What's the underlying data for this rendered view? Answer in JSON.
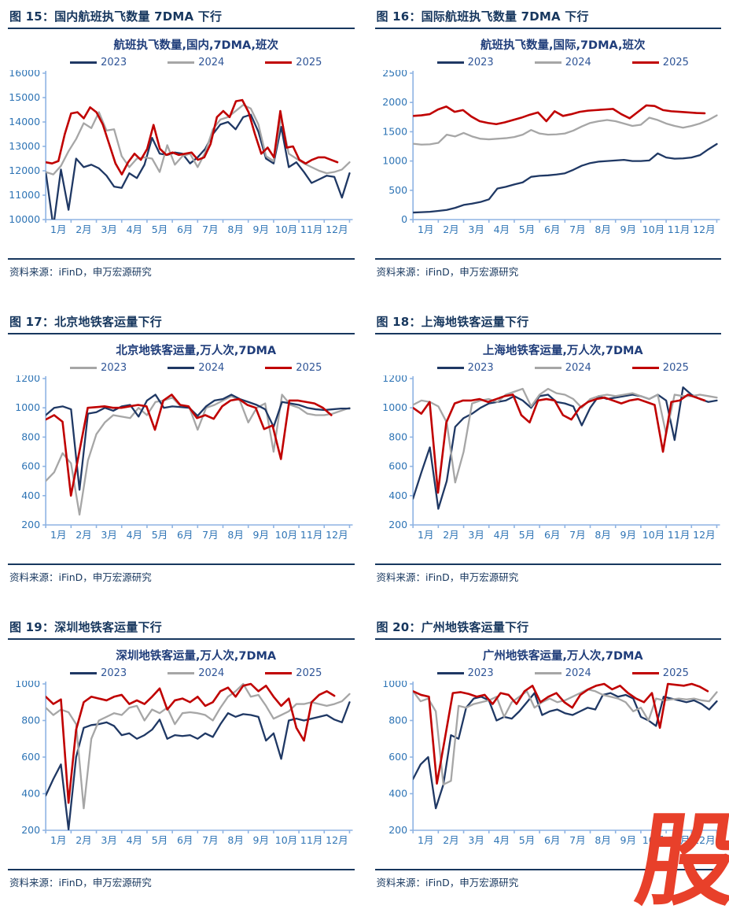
{
  "page": {
    "source_label": "资料来源：iFinD，申万宏源研究",
    "watermark": {
      "text": "股",
      "color": "#E8402A"
    }
  },
  "colors": {
    "navy": "#1F3864",
    "gray": "#A6A6A6",
    "red": "#C00000",
    "header": "#17375E",
    "tick": "#2E74B5",
    "axis": "#8FB4E3",
    "legend_text": "#2F5597"
  },
  "chart_data": [
    {
      "type": "line",
      "figure_number": "15",
      "figure_label": "图 15：国内航班执飞数量 7DMA 下行",
      "title": "航班执飞数量,国内,7DMA,班次",
      "x_labels": [
        "1月",
        "2月",
        "3月",
        "4月",
        "5月",
        "6月",
        "7月",
        "8月",
        "9月",
        "10月",
        "11月",
        "12月"
      ],
      "ylim": [
        10000,
        16000
      ],
      "y_step": 1000,
      "grid": false,
      "legend_position": "top",
      "series": [
        {
          "name": "2023",
          "color": "navy",
          "end": 1.0,
          "values": [
            11950,
            9700,
            12050,
            10400,
            12500,
            12150,
            12250,
            12100,
            11800,
            11350,
            11300,
            11900,
            11700,
            12250,
            13350,
            12700,
            12650,
            12750,
            12700,
            12300,
            12550,
            12900,
            13500,
            13900,
            14000,
            13700,
            14200,
            14300,
            13600,
            12500,
            12300,
            13800,
            12150,
            12350,
            11950,
            11500,
            11650,
            11800,
            11750,
            10900,
            11900
          ]
        },
        {
          "name": "2024",
          "color": "gray",
          "end": 1.0,
          "values": [
            11950,
            11850,
            12200,
            12800,
            13300,
            13950,
            13750,
            14400,
            13650,
            13700,
            12600,
            12150,
            12500,
            12550,
            12500,
            11950,
            13050,
            12250,
            12600,
            12700,
            12150,
            12750,
            13700,
            14100,
            14200,
            14450,
            14700,
            14550,
            13900,
            12600,
            12400,
            14200,
            12700,
            12500,
            12300,
            12150,
            12000,
            11900,
            11950,
            12050,
            12350
          ]
        },
        {
          "name": "2025",
          "color": "red",
          "end": 0.96,
          "values": [
            12350,
            12300,
            12400,
            13500,
            14350,
            14400,
            14150,
            14600,
            14400,
            13900,
            13100,
            12300,
            11850,
            12350,
            12700,
            12450,
            12900,
            13880,
            12900,
            12650,
            12750,
            12650,
            12700,
            12750,
            12450,
            12550,
            13100,
            14200,
            14450,
            14200,
            14850,
            14900,
            14400,
            13500,
            12700,
            12950,
            12550,
            14450,
            12950,
            13000,
            12450,
            12300,
            12450,
            12550,
            12550,
            12450,
            12350
          ]
        }
      ]
    },
    {
      "type": "line",
      "figure_number": "16",
      "figure_label": "图 16：国际航班执飞数量 7DMA 下行",
      "title": "航班执飞数量,国际,7DMA,班次",
      "x_labels": [
        "1月",
        "2月",
        "3月",
        "4月",
        "5月",
        "6月",
        "7月",
        "8月",
        "9月",
        "10月",
        "11月",
        "12月"
      ],
      "ylim": [
        0,
        2500
      ],
      "y_step": 500,
      "grid": false,
      "legend_position": "top",
      "series": [
        {
          "name": "2023",
          "color": "navy",
          "end": 1.0,
          "values": [
            120,
            126,
            133,
            148,
            165,
            200,
            250,
            272,
            300,
            345,
            530,
            560,
            600,
            635,
            730,
            748,
            755,
            770,
            790,
            850,
            920,
            965,
            990,
            1000,
            1010,
            1020,
            1000,
            1000,
            1010,
            1130,
            1060,
            1040,
            1045,
            1060,
            1100,
            1200,
            1290
          ]
        },
        {
          "name": "2024",
          "color": "gray",
          "end": 1.0,
          "values": [
            1295,
            1280,
            1285,
            1310,
            1450,
            1420,
            1480,
            1420,
            1380,
            1370,
            1380,
            1390,
            1410,
            1450,
            1530,
            1470,
            1450,
            1455,
            1470,
            1520,
            1590,
            1650,
            1680,
            1700,
            1680,
            1640,
            1600,
            1620,
            1740,
            1700,
            1640,
            1600,
            1570,
            1600,
            1640,
            1700,
            1780
          ]
        },
        {
          "name": "2025",
          "color": "red",
          "end": 0.96,
          "values": [
            1770,
            1780,
            1800,
            1880,
            1930,
            1840,
            1870,
            1760,
            1680,
            1650,
            1630,
            1660,
            1700,
            1740,
            1790,
            1830,
            1680,
            1850,
            1770,
            1800,
            1840,
            1860,
            1870,
            1880,
            1890,
            1800,
            1730,
            1840,
            1950,
            1940,
            1870,
            1850,
            1840,
            1830,
            1820,
            1815
          ]
        }
      ]
    },
    {
      "type": "line",
      "figure_number": "17",
      "figure_label": "图 17：北京地铁客运量下行",
      "title": "北京地铁客运量,万人次,7DMA",
      "x_labels": [
        "1月",
        "2月",
        "3月",
        "4月",
        "5月",
        "6月",
        "7月",
        "8月",
        "9月",
        "10月",
        "11月",
        "12月"
      ],
      "ylim": [
        200,
        1200
      ],
      "y_step": 200,
      "grid": false,
      "legend_position": "top",
      "series": [
        {
          "name": "2023",
          "color": "gray",
          "end": 1.0,
          "values": [
            500,
            560,
            690,
            620,
            270,
            640,
            820,
            900,
            950,
            940,
            930,
            1000,
            950,
            1040,
            1050,
            1070,
            1010,
            1005,
            850,
            1000,
            1020,
            1050,
            1080,
            1050,
            900,
            1000,
            1030,
            700,
            1090,
            1020,
            1000,
            960,
            950,
            950,
            960,
            980,
            1000
          ]
        },
        {
          "name": "2024",
          "color": "navy",
          "end": 1.0,
          "values": [
            950,
            1000,
            1010,
            990,
            440,
            960,
            970,
            1000,
            980,
            1010,
            1020,
            940,
            1050,
            1090,
            1000,
            1010,
            1005,
            1000,
            945,
            1010,
            1050,
            1060,
            1090,
            1060,
            1040,
            1020,
            990,
            870,
            1040,
            1030,
            1020,
            1000,
            990,
            985,
            990,
            995,
            995
          ]
        },
        {
          "name": "2025",
          "color": "red",
          "end": 0.94,
          "values": [
            920,
            950,
            905,
            400,
            700,
            1000,
            1005,
            1010,
            1000,
            1000,
            1010,
            1020,
            1010,
            850,
            1050,
            1090,
            1020,
            1010,
            930,
            950,
            925,
            1010,
            1050,
            1060,
            1020,
            1000,
            855,
            880,
            650,
            1050,
            1050,
            1040,
            1030,
            1000,
            950
          ]
        }
      ]
    },
    {
      "type": "line",
      "figure_number": "18",
      "figure_label": "图 18：上海地铁客运量下行",
      "title": "上海地铁客运量,万人次,7DMA",
      "x_labels": [
        "1月",
        "2月",
        "3月",
        "4月",
        "5月",
        "6月",
        "7月",
        "8月",
        "9月",
        "10月",
        "11月",
        "12月"
      ],
      "ylim": [
        200,
        1200
      ],
      "y_step": 200,
      "grid": false,
      "legend_position": "top",
      "series": [
        {
          "name": "2023",
          "color": "navy",
          "end": 1.0,
          "values": [
            380,
            560,
            730,
            310,
            500,
            870,
            930,
            960,
            1000,
            1030,
            1040,
            1050,
            1080,
            1050,
            1000,
            1080,
            1090,
            1040,
            1030,
            1010,
            880,
            1000,
            1080,
            1060,
            1070,
            1080,
            1090,
            1080,
            1060,
            1090,
            1050,
            780,
            1140,
            1090,
            1060,
            1040,
            1050
          ]
        },
        {
          "name": "2024",
          "color": "gray",
          "end": 1.0,
          "values": [
            1020,
            1050,
            1040,
            1010,
            900,
            490,
            700,
            1030,
            1050,
            1060,
            1040,
            1090,
            1110,
            1130,
            1010,
            1090,
            1130,
            1100,
            1090,
            1060,
            1000,
            1060,
            1080,
            1090,
            1080,
            1090,
            1100,
            1080,
            1060,
            1090,
            820,
            1090,
            1080,
            1080,
            1090,
            1080,
            1070
          ]
        },
        {
          "name": "2025",
          "color": "red",
          "end": 0.96,
          "values": [
            1000,
            960,
            1040,
            420,
            900,
            1030,
            1050,
            1050,
            1060,
            1040,
            1060,
            1080,
            1090,
            950,
            900,
            1050,
            1060,
            1050,
            950,
            920,
            1000,
            1040,
            1060,
            1070,
            1050,
            1030,
            1050,
            1060,
            1040,
            1020,
            700,
            1040,
            1050,
            1090,
            1070,
            1050
          ]
        }
      ]
    },
    {
      "type": "line",
      "figure_number": "19",
      "figure_label": "图 19：深圳地铁客运量下行",
      "title": "深圳地铁客运量,万人次,7DMA",
      "x_labels": [
        "1月",
        "2月",
        "3月",
        "4月",
        "5月",
        "6月",
        "7月",
        "8月",
        "9月",
        "10月",
        "11月",
        "12月"
      ],
      "ylim": [
        200,
        1000
      ],
      "y_step": 200,
      "grid": false,
      "legend_position": "top",
      "series": [
        {
          "name": "2023",
          "color": "navy",
          "end": 1.0,
          "values": [
            390,
            480,
            560,
            205,
            600,
            760,
            775,
            780,
            790,
            770,
            720,
            730,
            700,
            720,
            750,
            805,
            700,
            720,
            715,
            720,
            700,
            730,
            710,
            780,
            840,
            820,
            835,
            830,
            820,
            690,
            730,
            590,
            800,
            810,
            800,
            810,
            820,
            830,
            805,
            790,
            900
          ]
        },
        {
          "name": "2024",
          "color": "gray",
          "end": 1.0,
          "values": [
            870,
            830,
            860,
            845,
            780,
            320,
            700,
            800,
            820,
            840,
            830,
            870,
            880,
            800,
            860,
            840,
            870,
            780,
            840,
            845,
            840,
            830,
            800,
            870,
            930,
            960,
            1000,
            930,
            940,
            880,
            810,
            830,
            850,
            890,
            890,
            900,
            890,
            880,
            890,
            905,
            945
          ]
        },
        {
          "name": "2025",
          "color": "red",
          "end": 0.95,
          "values": [
            930,
            890,
            915,
            350,
            750,
            900,
            930,
            920,
            910,
            930,
            940,
            890,
            910,
            890,
            930,
            975,
            860,
            910,
            920,
            900,
            930,
            880,
            900,
            960,
            980,
            930,
            990,
            1000,
            960,
            990,
            930,
            880,
            920,
            760,
            690,
            900,
            940,
            960,
            935
          ]
        }
      ]
    },
    {
      "type": "line",
      "figure_number": "20",
      "figure_label": "图 20：广州地铁客运量下行",
      "title": "广州地铁客运量,万人次,7DMA",
      "x_labels": [
        "1月",
        "2月",
        "3月",
        "4月",
        "5月",
        "6月",
        "7月",
        "8月",
        "9月",
        "10月",
        "11月",
        "12月"
      ],
      "ylim": [
        200,
        1000
      ],
      "y_step": 200,
      "grid": false,
      "legend_position": "top",
      "series": [
        {
          "name": "2023",
          "color": "navy",
          "end": 1.0,
          "values": [
            480,
            560,
            600,
            320,
            450,
            720,
            700,
            870,
            920,
            930,
            910,
            800,
            820,
            810,
            850,
            900,
            950,
            830,
            850,
            860,
            840,
            830,
            850,
            870,
            860,
            940,
            950,
            930,
            940,
            920,
            820,
            800,
            770,
            930,
            920,
            910,
            900,
            910,
            890,
            860,
            905
          ]
        },
        {
          "name": "2024",
          "color": "gray",
          "end": 1.0,
          "values": [
            960,
            905,
            920,
            850,
            450,
            470,
            880,
            870,
            890,
            900,
            910,
            930,
            820,
            900,
            930,
            960,
            870,
            900,
            920,
            900,
            910,
            930,
            950,
            970,
            960,
            940,
            930,
            920,
            900,
            850,
            870,
            800,
            920,
            910,
            915,
            920,
            915,
            920,
            910,
            905,
            955
          ]
        },
        {
          "name": "2025",
          "color": "red",
          "end": 0.97,
          "values": [
            960,
            940,
            930,
            455,
            700,
            950,
            955,
            945,
            930,
            940,
            890,
            950,
            940,
            890,
            960,
            990,
            900,
            930,
            950,
            900,
            870,
            940,
            970,
            990,
            1000,
            970,
            990,
            950,
            920,
            900,
            950,
            760,
            1000,
            995,
            990,
            1000,
            985,
            960
          ]
        }
      ]
    }
  ]
}
